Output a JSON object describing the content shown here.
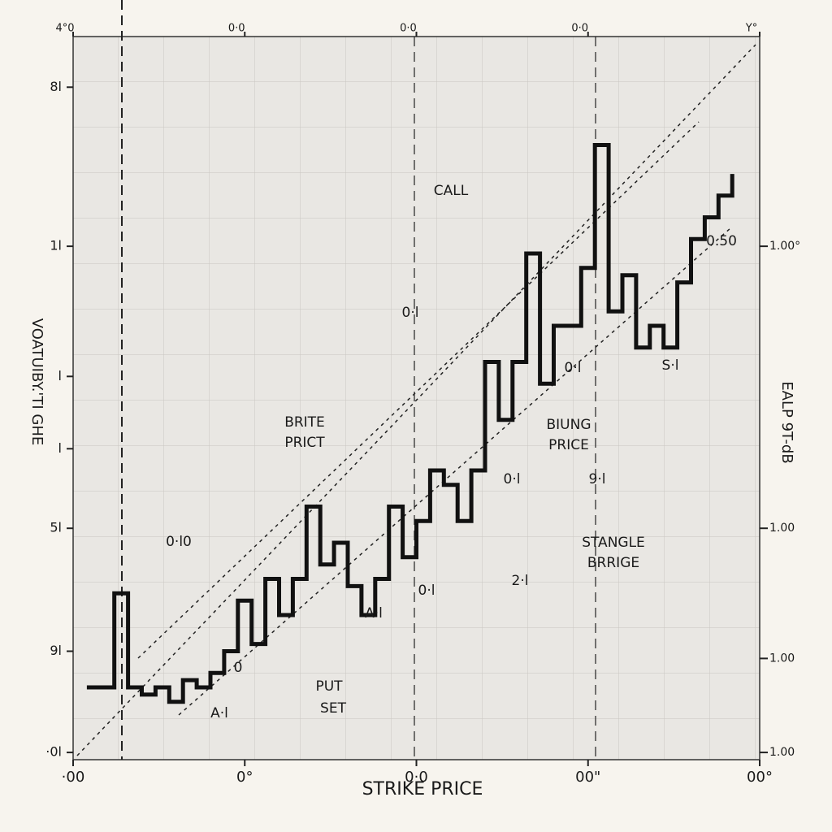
{
  "chart_data": {
    "type": "line",
    "x_label": "STRIKE PRICE",
    "y_label": "VOATUIBY.'TI GHE",
    "y2_label": "EALP 9T-dB",
    "x": [
      2,
      4,
      6,
      8,
      10,
      12,
      14,
      16,
      18,
      20,
      22,
      24,
      26,
      28,
      30,
      32,
      34,
      36,
      38,
      40,
      42,
      44,
      46,
      48,
      50,
      52,
      54,
      56,
      58,
      60,
      62,
      64,
      66,
      68,
      70,
      72,
      74,
      76,
      78,
      80,
      82,
      84,
      86,
      88,
      90,
      92,
      94,
      96
    ],
    "series": [
      {
        "color": "#111111",
        "values": [
          10,
          10,
          23,
          10,
          9,
          10,
          8,
          11,
          10,
          12,
          15,
          22,
          16,
          25,
          20,
          25,
          35,
          27,
          30,
          24,
          20,
          25,
          35,
          28,
          33,
          40,
          38,
          33,
          40,
          55,
          47,
          55,
          70,
          52,
          60,
          60,
          68,
          85,
          62,
          67,
          57,
          60,
          57,
          66,
          72,
          75,
          78,
          81
        ]
      }
    ],
    "xlim": [
      0,
      100
    ],
    "xticks": [
      {
        "value": 0,
        "label": "·00"
      },
      {
        "value": 25,
        "label": "0°"
      },
      {
        "value": 50,
        "label": "0·0"
      },
      {
        "value": 75,
        "label": "00\""
      },
      {
        "value": 100,
        "label": "00°"
      }
    ],
    "x2ticks": [
      {
        "value": 0,
        "label": "4°0"
      },
      {
        "value": 25,
        "label": "0·0"
      },
      {
        "value": 50,
        "label": "0·0"
      },
      {
        "value": 75,
        "label": "0·0"
      },
      {
        "value": 100,
        "label": "Y°"
      }
    ],
    "ylim": [
      0,
      100
    ],
    "yticks": [
      {
        "value": 93,
        "label": "8l"
      },
      {
        "value": 71,
        "label": "1l"
      },
      {
        "value": 53,
        "label": "l"
      },
      {
        "value": 43,
        "label": "l"
      },
      {
        "value": 32,
        "label": "5l"
      },
      {
        "value": 15,
        "label": "9l"
      },
      {
        "value": 1,
        "label": "·0l"
      }
    ],
    "y2lim": [
      0,
      100
    ],
    "y2ticks": [
      {
        "value": 71,
        "label": "1.00°"
      },
      {
        "value": 32,
        "label": "1.00"
      },
      {
        "value": 14,
        "label": "1.00"
      },
      {
        "value": 1,
        "label": "1.00"
      }
    ],
    "annotations": [
      "CALL",
      "BRITE",
      "PRICT",
      "BIUNG",
      "PRICE",
      "STANGLE",
      "BRRIGE",
      "PUT",
      "SET",
      "0·l",
      "0·l",
      "S·l",
      "0·l",
      "9·l",
      "0·l0",
      "0·l",
      "A·l",
      "0",
      "A·l",
      "2·l",
      "0.50"
    ]
  }
}
